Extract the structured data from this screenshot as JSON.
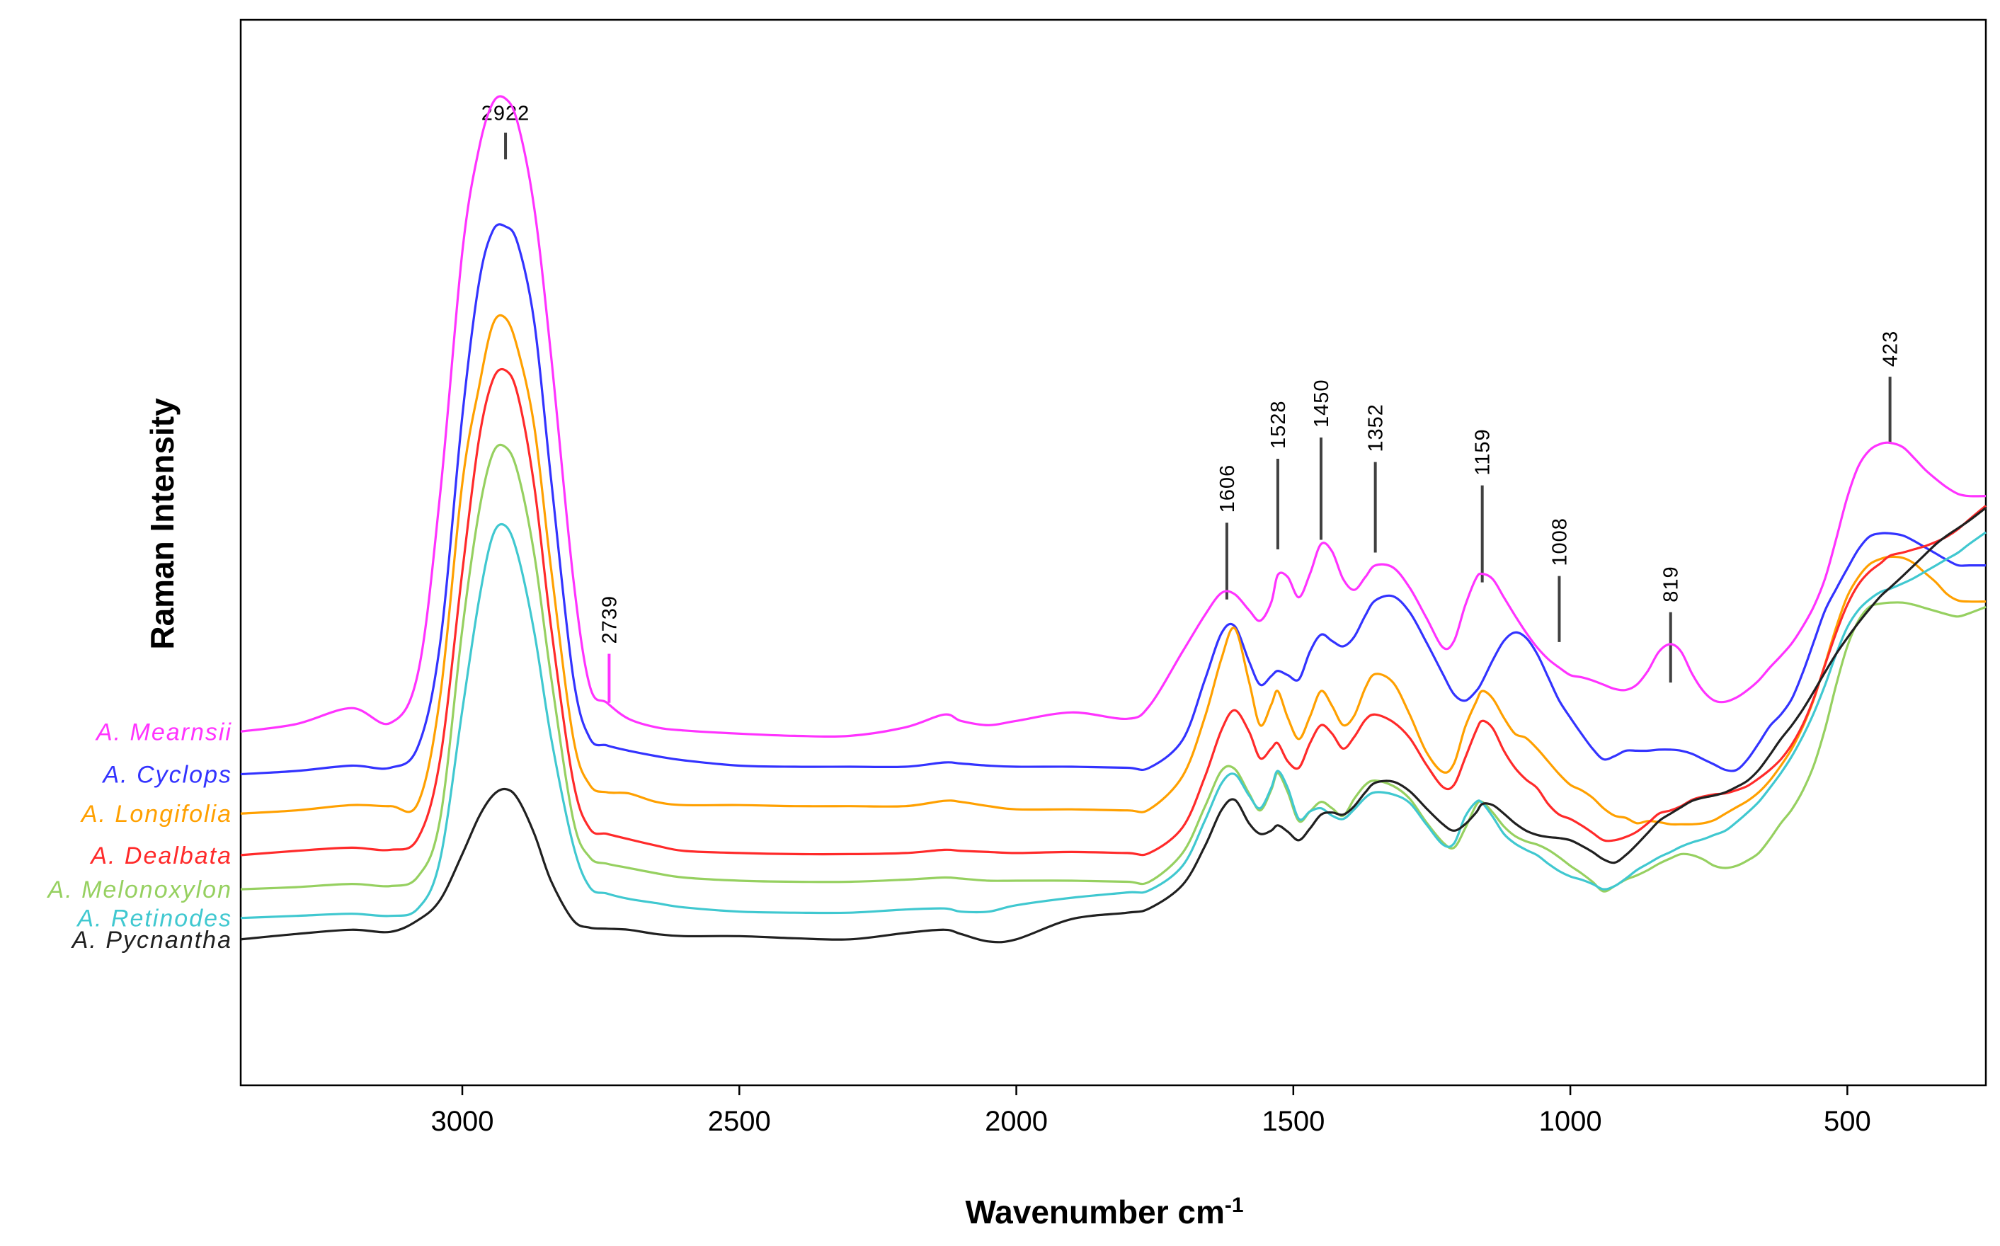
{
  "chart_data": {
    "type": "line",
    "title": "",
    "xlabel": "Wavenumber cm",
    "xlabel_superscript": "-1",
    "ylabel": "Raman Intensity",
    "xlim": [
      3400,
      250
    ],
    "x_reversed": true,
    "x_ticks": [
      3000,
      2500,
      2000,
      1500,
      1000,
      500
    ],
    "x_tick_labels": [
      "3000",
      "2500",
      "2000",
      "1500",
      "1000",
      "500"
    ],
    "y_ticks": [],
    "ylim": [
      0,
      100
    ],
    "grid": false,
    "legend": "labels at left of each trace",
    "peak_annotations": [
      {
        "label": "2922",
        "x": 2922,
        "y_start": 86.9,
        "y_end": 89.4,
        "color": "#404040",
        "label_orientation": "horizontal"
      },
      {
        "label": "2739",
        "x": 2735,
        "y_start": 35.9,
        "y_end": 40.5,
        "color": "#ff33ff",
        "label_orientation": "vertical"
      },
      {
        "label": "1606",
        "x": 1620,
        "y_start": 45.6,
        "y_end": 52.8,
        "color": "#404040",
        "label_orientation": "vertical"
      },
      {
        "label": "1528",
        "x": 1528,
        "y_start": 50.3,
        "y_end": 58.8,
        "color": "#404040",
        "label_orientation": "vertical"
      },
      {
        "label": "1450",
        "x": 1450,
        "y_start": 51.2,
        "y_end": 60.8,
        "color": "#404040",
        "label_orientation": "vertical"
      },
      {
        "label": "1352",
        "x": 1352,
        "y_start": 50.0,
        "y_end": 58.5,
        "color": "#404040",
        "label_orientation": "vertical"
      },
      {
        "label": "1159",
        "x": 1159,
        "y_start": 47.2,
        "y_end": 56.3,
        "color": "#404040",
        "label_orientation": "vertical"
      },
      {
        "label": "1008",
        "x": 1020,
        "y_start": 41.6,
        "y_end": 47.8,
        "color": "#404040",
        "label_orientation": "vertical"
      },
      {
        "label": "819",
        "x": 819,
        "y_start": 37.8,
        "y_end": 44.4,
        "color": "#404040",
        "label_orientation": "vertical"
      },
      {
        "label": "423",
        "x": 423,
        "y_start": 60.3,
        "y_end": 66.5,
        "color": "#404040",
        "label_orientation": "vertical"
      }
    ],
    "x": [
      3400,
      3300,
      3200,
      3130,
      3080,
      3040,
      3000,
      2970,
      2945,
      2922,
      2900,
      2870,
      2840,
      2800,
      2770,
      2739,
      2700,
      2650,
      2600,
      2500,
      2400,
      2300,
      2200,
      2130,
      2100,
      2050,
      2000,
      1900,
      1800,
      1760,
      1700,
      1660,
      1630,
      1606,
      1580,
      1560,
      1540,
      1528,
      1510,
      1490,
      1470,
      1450,
      1430,
      1410,
      1390,
      1370,
      1352,
      1320,
      1290,
      1260,
      1230,
      1210,
      1190,
      1170,
      1159,
      1140,
      1120,
      1100,
      1080,
      1060,
      1040,
      1020,
      1000,
      980,
      960,
      940,
      920,
      900,
      880,
      860,
      840,
      819,
      800,
      780,
      760,
      740,
      720,
      700,
      680,
      660,
      640,
      620,
      600,
      580,
      560,
      540,
      520,
      500,
      480,
      460,
      440,
      423,
      400,
      380,
      360,
      340,
      320,
      300,
      280,
      250
    ],
    "series": [
      {
        "name": "A. Mearnsii",
        "color": "#ff33ff",
        "values": [
          33.2,
          33.9,
          35.4,
          34.0,
          38.7,
          55.5,
          78.2,
          87.9,
          92.2,
          92.6,
          90.3,
          82.3,
          68.6,
          47.7,
          37.5,
          35.9,
          34.4,
          33.6,
          33.3,
          33.0,
          32.8,
          32.8,
          33.6,
          34.8,
          34.2,
          33.8,
          34.2,
          35.0,
          34.4,
          35.6,
          40.7,
          44.1,
          46.2,
          46.1,
          44.6,
          43.6,
          45.3,
          47.9,
          47.7,
          45.8,
          48.0,
          50.8,
          50.1,
          47.5,
          46.5,
          47.7,
          48.8,
          48.6,
          46.7,
          43.9,
          41.1,
          41.7,
          45.0,
          47.6,
          48.0,
          47.5,
          45.8,
          44.1,
          42.5,
          41.1,
          40.0,
          39.2,
          38.5,
          38.3,
          38.0,
          37.6,
          37.2,
          37.1,
          37.6,
          38.9,
          40.7,
          41.4,
          40.7,
          38.6,
          37.0,
          36.1,
          36.0,
          36.4,
          37.1,
          38.0,
          39.2,
          40.3,
          41.5,
          43.1,
          45.0,
          47.6,
          51.3,
          55.2,
          58.1,
          59.6,
          60.2,
          60.3,
          59.9,
          58.9,
          57.8,
          56.9,
          56.1,
          55.5,
          55.3,
          55.3
        ]
      },
      {
        "name": "A. Cyclops",
        "color": "#3333ff",
        "values": [
          29.2,
          29.5,
          30.0,
          29.8,
          31.8,
          41.5,
          62.8,
          75.3,
          80.2,
          80.6,
          79.0,
          71.6,
          57.0,
          38.4,
          32.6,
          31.9,
          31.4,
          30.9,
          30.5,
          30.0,
          29.9,
          29.9,
          29.9,
          30.3,
          30.2,
          30.0,
          29.9,
          29.9,
          29.8,
          29.8,
          32.4,
          38.0,
          42.4,
          43.1,
          39.8,
          37.6,
          38.4,
          38.9,
          38.5,
          38.1,
          40.7,
          42.3,
          41.7,
          41.2,
          42.1,
          44.1,
          45.5,
          45.9,
          44.4,
          41.6,
          38.6,
          36.7,
          36.1,
          37.0,
          37.9,
          39.9,
          41.7,
          42.5,
          42.0,
          40.5,
          38.3,
          36.1,
          34.5,
          33.0,
          31.6,
          30.6,
          30.9,
          31.4,
          31.4,
          31.4,
          31.5,
          31.5,
          31.4,
          31.1,
          30.6,
          30.1,
          29.6,
          29.6,
          30.6,
          32.1,
          33.7,
          34.8,
          36.3,
          38.8,
          41.7,
          44.6,
          46.6,
          48.5,
          50.3,
          51.5,
          51.8,
          51.8,
          51.6,
          51.1,
          50.5,
          49.9,
          49.3,
          48.8,
          48.8,
          48.8
        ]
      },
      {
        "name": "A. Longifolia",
        "color": "#ffa000",
        "values": [
          25.5,
          25.8,
          26.3,
          26.2,
          26.5,
          36.5,
          56.5,
          65.5,
          71.4,
          72.0,
          69.1,
          61.8,
          48.6,
          32.7,
          28.2,
          27.5,
          27.4,
          26.6,
          26.3,
          26.3,
          26.2,
          26.2,
          26.2,
          26.7,
          26.6,
          26.2,
          25.9,
          25.9,
          25.8,
          25.9,
          29.0,
          34.5,
          40.0,
          42.9,
          37.9,
          33.8,
          35.7,
          37.0,
          34.5,
          32.5,
          34.6,
          37.0,
          35.6,
          33.8,
          34.7,
          37.3,
          38.6,
          37.8,
          34.8,
          31.3,
          29.4,
          30.2,
          33.6,
          36.0,
          37.0,
          36.3,
          34.5,
          33.0,
          32.6,
          31.6,
          30.4,
          29.2,
          28.2,
          27.7,
          27.0,
          26.0,
          25.3,
          25.1,
          24.6,
          24.8,
          24.7,
          24.5,
          24.5,
          24.5,
          24.6,
          24.9,
          25.5,
          26.1,
          26.7,
          27.5,
          28.6,
          30.0,
          31.6,
          33.7,
          36.3,
          39.6,
          43.0,
          45.9,
          47.7,
          48.9,
          49.4,
          49.6,
          49.5,
          49.0,
          48.1,
          47.2,
          46.1,
          45.5,
          45.4,
          45.4
        ]
      },
      {
        "name": "A. Dealbata",
        "color": "#ff2a2a",
        "values": [
          21.6,
          22.0,
          22.3,
          22.1,
          23.2,
          30.6,
          48.2,
          60.6,
          66.2,
          67.1,
          64.8,
          56.2,
          43.1,
          28.6,
          24.1,
          23.6,
          23.1,
          22.5,
          22.0,
          21.8,
          21.7,
          21.7,
          21.8,
          22.1,
          22.0,
          21.9,
          21.8,
          21.9,
          21.8,
          21.8,
          24.2,
          28.9,
          33.3,
          35.2,
          33.2,
          30.7,
          31.6,
          32.1,
          30.4,
          29.8,
          32.1,
          33.8,
          33.0,
          31.6,
          32.7,
          34.3,
          34.8,
          34.1,
          32.6,
          30.1,
          28.0,
          28.2,
          30.7,
          33.3,
          34.2,
          33.5,
          31.4,
          29.8,
          28.7,
          27.9,
          26.4,
          25.4,
          25.0,
          24.4,
          23.7,
          23.0,
          23.0,
          23.3,
          23.8,
          24.6,
          25.5,
          25.8,
          26.2,
          26.8,
          27.1,
          27.3,
          27.4,
          27.7,
          28.1,
          28.8,
          29.6,
          30.6,
          32.0,
          33.9,
          36.4,
          39.5,
          42.5,
          45.1,
          47.0,
          48.2,
          49.0,
          49.7,
          50.0,
          50.3,
          50.6,
          51.0,
          51.5,
          52.2,
          53.1,
          54.4
        ]
      },
      {
        "name": "A. Melonoxylon",
        "color": "#96d060",
        "values": [
          18.4,
          18.6,
          18.9,
          18.7,
          19.6,
          25.0,
          42.8,
          53.8,
          59.3,
          59.9,
          57.5,
          49.8,
          38.4,
          25.0,
          21.4,
          20.8,
          20.4,
          19.9,
          19.5,
          19.2,
          19.1,
          19.1,
          19.3,
          19.5,
          19.4,
          19.2,
          19.2,
          19.2,
          19.1,
          19.1,
          21.8,
          26.1,
          29.5,
          29.7,
          27.4,
          25.8,
          27.7,
          29.3,
          27.5,
          24.8,
          25.7,
          26.6,
          26.0,
          25.3,
          26.9,
          28.2,
          28.6,
          28.1,
          26.9,
          24.7,
          22.8,
          22.3,
          24.1,
          26.3,
          26.6,
          25.6,
          24.3,
          23.4,
          22.9,
          22.6,
          22.1,
          21.4,
          20.6,
          19.9,
          19.1,
          18.2,
          18.7,
          19.3,
          19.7,
          20.2,
          20.8,
          21.3,
          21.7,
          21.6,
          21.2,
          20.6,
          20.4,
          20.6,
          21.1,
          21.8,
          23.1,
          24.6,
          25.9,
          27.7,
          30.1,
          33.5,
          37.6,
          41.2,
          43.6,
          44.9,
          45.2,
          45.3,
          45.3,
          45.1,
          44.8,
          44.5,
          44.2,
          44.0,
          44.3,
          44.9
        ]
      },
      {
        "name": "A. Retinodes",
        "color": "#40c8d0",
        "values": [
          15.7,
          15.9,
          16.1,
          15.9,
          16.6,
          21.2,
          35.2,
          45.5,
          51.6,
          52.5,
          49.8,
          42.5,
          32.7,
          22.6,
          18.6,
          18.0,
          17.5,
          17.1,
          16.7,
          16.3,
          16.2,
          16.2,
          16.5,
          16.6,
          16.3,
          16.3,
          16.9,
          17.6,
          18.1,
          18.3,
          20.6,
          24.8,
          28.3,
          29.2,
          27.2,
          26.0,
          27.9,
          29.5,
          27.9,
          25.0,
          25.7,
          26.0,
          25.3,
          25.0,
          25.9,
          27.0,
          27.5,
          27.3,
          26.5,
          24.5,
          22.6,
          22.7,
          25.2,
          26.6,
          26.5,
          25.2,
          23.6,
          22.7,
          22.1,
          21.6,
          20.8,
          20.1,
          19.6,
          19.3,
          18.9,
          18.4,
          18.7,
          19.4,
          20.2,
          20.8,
          21.4,
          21.9,
          22.4,
          22.8,
          23.1,
          23.5,
          23.9,
          24.7,
          25.6,
          26.6,
          27.9,
          29.3,
          30.9,
          32.8,
          35.0,
          37.6,
          40.5,
          43.0,
          44.6,
          45.6,
          46.3,
          46.6,
          47.1,
          47.6,
          48.2,
          48.8,
          49.4,
          50.0,
          50.8,
          51.9
        ]
      },
      {
        "name": "A. Pycnantha",
        "color": "#202020",
        "values": [
          13.7,
          14.2,
          14.6,
          14.4,
          15.5,
          17.4,
          21.7,
          25.2,
          27.2,
          27.8,
          26.9,
          23.6,
          19.2,
          15.5,
          14.8,
          14.7,
          14.6,
          14.2,
          14.0,
          14.0,
          13.8,
          13.7,
          14.3,
          14.6,
          14.2,
          13.5,
          13.7,
          15.6,
          16.2,
          16.6,
          18.8,
          22.4,
          25.8,
          26.8,
          24.6,
          23.6,
          23.9,
          24.4,
          23.8,
          23.0,
          24.1,
          25.4,
          25.6,
          25.4,
          26.2,
          27.5,
          28.4,
          28.5,
          27.6,
          26.0,
          24.5,
          23.9,
          24.5,
          25.6,
          26.4,
          26.3,
          25.5,
          24.6,
          23.9,
          23.5,
          23.3,
          23.2,
          23.0,
          22.5,
          21.9,
          21.2,
          20.9,
          21.6,
          22.6,
          23.7,
          24.8,
          25.5,
          26.1,
          26.7,
          27.0,
          27.2,
          27.5,
          28.0,
          28.6,
          29.6,
          31.0,
          32.5,
          33.8,
          35.3,
          37.0,
          38.8,
          40.5,
          42.0,
          43.4,
          44.7,
          45.9,
          46.7,
          47.8,
          48.8,
          49.8,
          50.8,
          51.6,
          52.3,
          53.0,
          54.2
        ]
      }
    ]
  }
}
